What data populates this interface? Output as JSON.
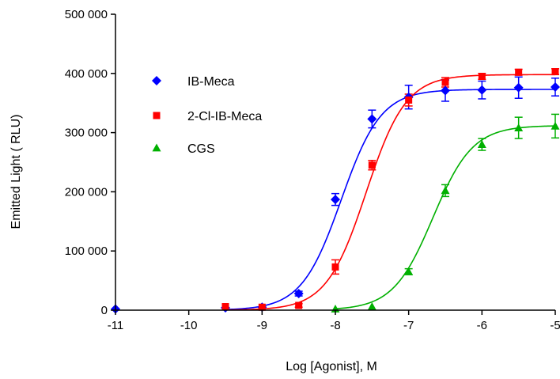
{
  "chart_data": {
    "type": "scatter",
    "title": "",
    "xlabel": "Log [Agonist], M",
    "ylabel": "Emitted Light  ( RLU)",
    "xlim": [
      -11,
      -5
    ],
    "ylim": [
      0,
      500000
    ],
    "x_ticks": [
      -11,
      -10,
      -9,
      -8,
      -7,
      -6,
      -5
    ],
    "x_tick_labels": [
      "-11",
      "-10",
      "-9",
      "-8",
      "-7",
      "-6",
      "-5"
    ],
    "y_ticks": [
      0,
      100000,
      200000,
      300000,
      400000,
      500000
    ],
    "y_tick_labels": [
      "0",
      "100 000",
      "200 000",
      "300 000",
      "400 000",
      "500 000"
    ],
    "grid": false,
    "legend_position": "upper-left",
    "series": [
      {
        "name": "IB-Meca",
        "color": "#0000ff",
        "marker": "diamond",
        "x": [
          -11,
          -9.5,
          -9,
          -8.5,
          -8,
          -7.5,
          -7,
          -6.5,
          -6,
          -5.5,
          -5
        ],
        "y": [
          2000,
          4000,
          5000,
          28000,
          187000,
          323000,
          360000,
          371000,
          372000,
          376000,
          377000
        ],
        "err": [
          0,
          0,
          0,
          4000,
          10000,
          15000,
          20000,
          18000,
          15000,
          18000,
          15000
        ],
        "fit": {
          "bottom": 0,
          "top": 373000,
          "log_ec50": -7.92,
          "hill": 1.6
        }
      },
      {
        "name": "2-Cl-IB-Meca",
        "color": "#ff0000",
        "marker": "square",
        "x": [
          -9.5,
          -9,
          -8.5,
          -8,
          -7.5,
          -7,
          -6.5,
          -6,
          -5.5,
          -5
        ],
        "y": [
          6000,
          5000,
          8000,
          73000,
          245000,
          355000,
          385000,
          395000,
          402000,
          403000
        ],
        "err": [
          0,
          0,
          3000,
          12000,
          8000,
          10000,
          8000,
          5000,
          5000,
          5000
        ],
        "fit": {
          "bottom": 0,
          "top": 398000,
          "log_ec50": -7.58,
          "hill": 1.6
        }
      },
      {
        "name": "CGS",
        "color": "#00b000",
        "marker": "triangle",
        "x": [
          -8,
          -7.5,
          -7,
          -6.5,
          -6,
          -5.5,
          -5
        ],
        "y": [
          2000,
          6000,
          65000,
          202000,
          280000,
          308000,
          311000
        ],
        "err": [
          0,
          0,
          5000,
          10000,
          10000,
          18000,
          20000
        ],
        "fit": {
          "bottom": 0,
          "top": 312000,
          "log_ec50": -6.67,
          "hill": 1.6
        }
      }
    ]
  }
}
